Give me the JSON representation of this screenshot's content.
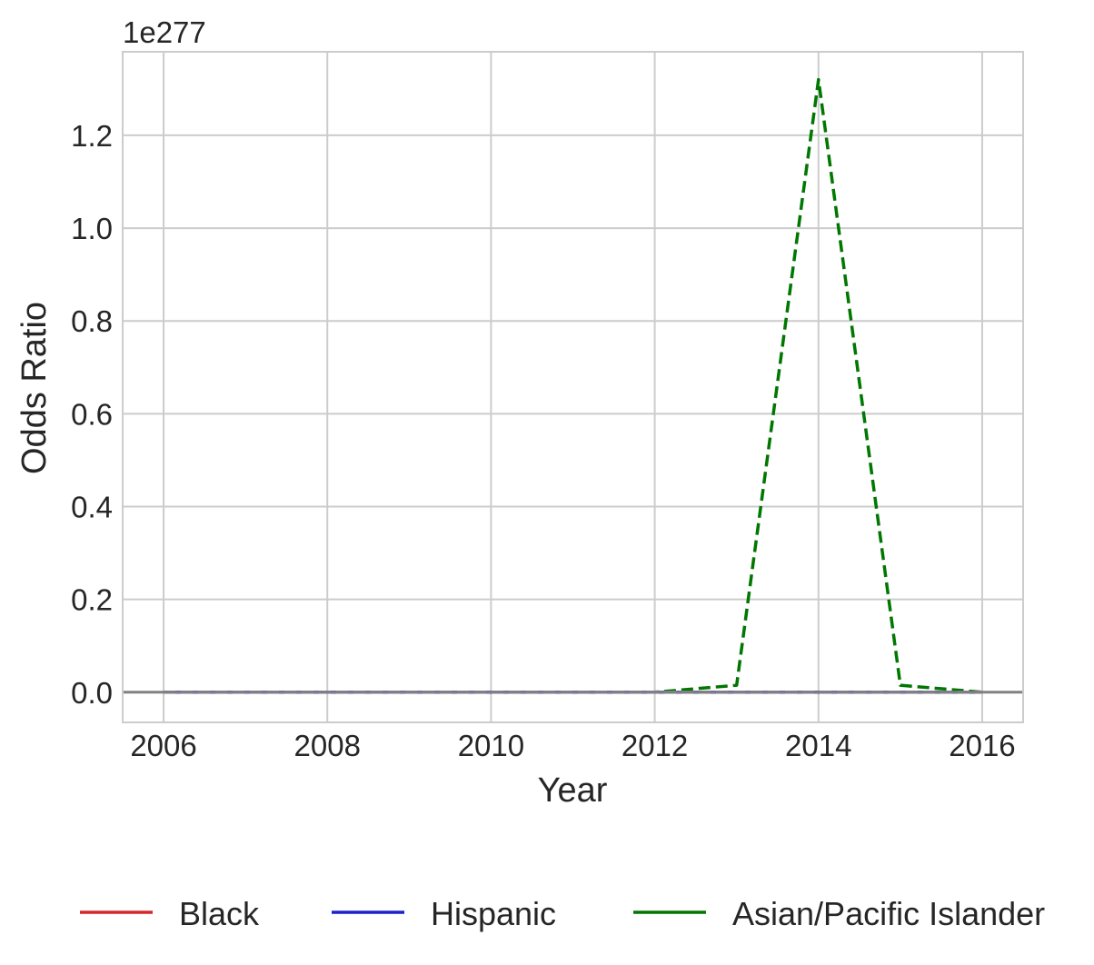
{
  "chart_data": {
    "type": "line",
    "title": "",
    "xlabel": "Year",
    "ylabel": "Odds Ratio",
    "y_offset_label": "1e277",
    "xlim": [
      2005.5,
      2016.5
    ],
    "ylim": [
      -0.065,
      1.38
    ],
    "xticks": [
      2006,
      2008,
      2010,
      2012,
      2014,
      2016
    ],
    "xtick_labels": [
      "2006",
      "2008",
      "2010",
      "2012",
      "2014",
      "2016"
    ],
    "yticks": [
      0.0,
      0.2,
      0.4,
      0.6,
      0.8,
      1.0,
      1.2
    ],
    "ytick_labels": [
      "0.0",
      "0.2",
      "0.4",
      "0.6",
      "0.8",
      "1.0",
      "1.2"
    ],
    "grid": true,
    "legend_position": "bottom",
    "x": [
      2006,
      2007,
      2008,
      2009,
      2010,
      2011,
      2012,
      2013,
      2014,
      2015,
      2016
    ],
    "series": [
      {
        "name": "Black",
        "color": "#d62728",
        "style": "solid",
        "values": [
          0,
          0,
          0,
          0,
          0,
          0,
          0,
          0,
          0,
          0,
          0
        ]
      },
      {
        "name": "Hispanic",
        "color": "#1f1fcf",
        "style": "solid",
        "values": [
          0,
          0,
          0,
          0,
          0,
          0,
          0,
          0,
          0,
          0,
          0
        ]
      },
      {
        "name": "Asian/Pacific Islander",
        "color": "#007700",
        "style": "dashed",
        "values": [
          0,
          0,
          0,
          0,
          0,
          0,
          0,
          0.015,
          1.32,
          0.015,
          0
        ]
      },
      {
        "color": "#8a6fbf",
        "style": "dashed",
        "values": [
          0,
          0,
          0,
          0,
          0,
          0,
          0,
          0,
          0,
          0,
          0
        ]
      }
    ],
    "reference_line": {
      "y": 0,
      "color": "#808080"
    }
  }
}
